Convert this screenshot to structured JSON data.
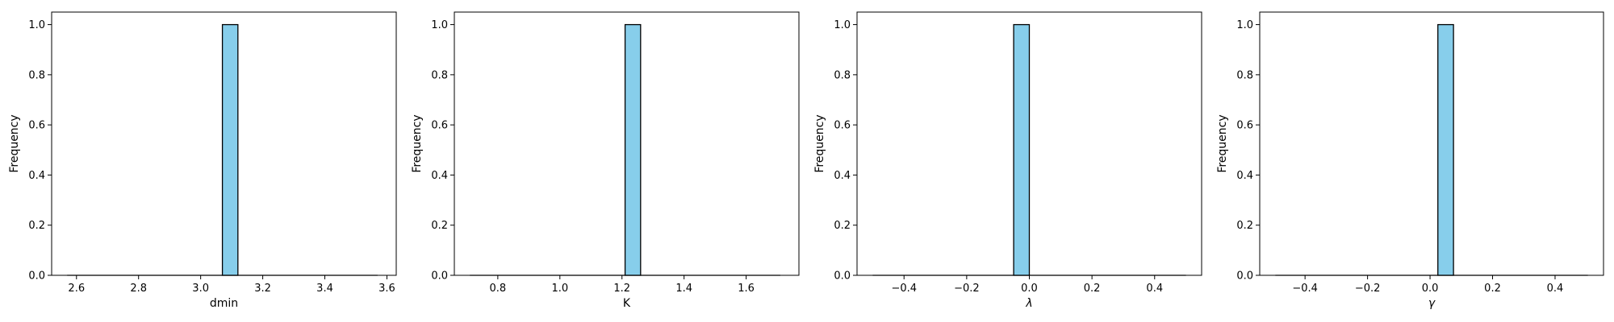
{
  "chart_data": [
    {
      "type": "bar",
      "subtype": "histogram",
      "xlabel": "dmin",
      "ylabel": "Frequency",
      "xlim": [
        2.52,
        3.63
      ],
      "ylim": [
        0,
        1.05
      ],
      "xticks": [
        "2.6",
        "2.8",
        "3.0",
        "3.2",
        "3.4",
        "3.6"
      ],
      "yticks": [
        "0.0",
        "0.2",
        "0.4",
        "0.6",
        "0.8",
        "1.0"
      ],
      "bins": [
        2.57,
        3.57
      ],
      "bin_count": 20,
      "bars": [
        {
          "x0": 3.07,
          "x1": 3.12,
          "value": 1.0
        }
      ],
      "bar_color": "#87ceeb"
    },
    {
      "type": "bar",
      "subtype": "histogram",
      "xlabel": "K",
      "ylabel": "Frequency",
      "xlim": [
        0.66,
        1.77
      ],
      "ylim": [
        0,
        1.05
      ],
      "xticks": [
        "0.8",
        "1.0",
        "1.2",
        "1.4",
        "1.6"
      ],
      "yticks": [
        "0.0",
        "0.2",
        "0.4",
        "0.6",
        "0.8",
        "1.0"
      ],
      "bins": [
        0.71,
        1.71
      ],
      "bin_count": 20,
      "bars": [
        {
          "x0": 1.21,
          "x1": 1.26,
          "value": 1.0
        }
      ],
      "bar_color": "#87ceeb"
    },
    {
      "type": "bar",
      "subtype": "histogram",
      "xlabel": "λ",
      "ylabel": "Frequency",
      "xlim": [
        -0.55,
        0.55
      ],
      "ylim": [
        0,
        1.05
      ],
      "xticks": [
        "−0.4",
        "−0.2",
        "0.0",
        "0.2",
        "0.4"
      ],
      "xtick_values": [
        -0.4,
        -0.2,
        0.0,
        0.2,
        0.4
      ],
      "yticks": [
        "0.0",
        "0.2",
        "0.4",
        "0.6",
        "0.8",
        "1.0"
      ],
      "bins": [
        -0.5,
        0.5
      ],
      "bin_count": 20,
      "bars": [
        {
          "x0": -0.05,
          "x1": 0.0,
          "value": 1.0
        }
      ],
      "bar_color": "#87ceeb"
    },
    {
      "type": "bar",
      "subtype": "histogram",
      "xlabel": "γ",
      "ylabel": "Frequency",
      "xlim": [
        -0.545,
        0.555
      ],
      "ylim": [
        0,
        1.05
      ],
      "xticks": [
        "−0.4",
        "−0.2",
        "0.0",
        "0.2",
        "0.4"
      ],
      "xtick_values": [
        -0.4,
        -0.2,
        0.0,
        0.2,
        0.4
      ],
      "yticks": [
        "0.0",
        "0.2",
        "0.4",
        "0.6",
        "0.8",
        "1.0"
      ],
      "bins": [
        -0.495,
        0.505
      ],
      "bin_count": 20,
      "bars": [
        {
          "x0": 0.025,
          "x1": 0.075,
          "value": 1.0
        }
      ],
      "bar_color": "#87ceeb"
    }
  ]
}
